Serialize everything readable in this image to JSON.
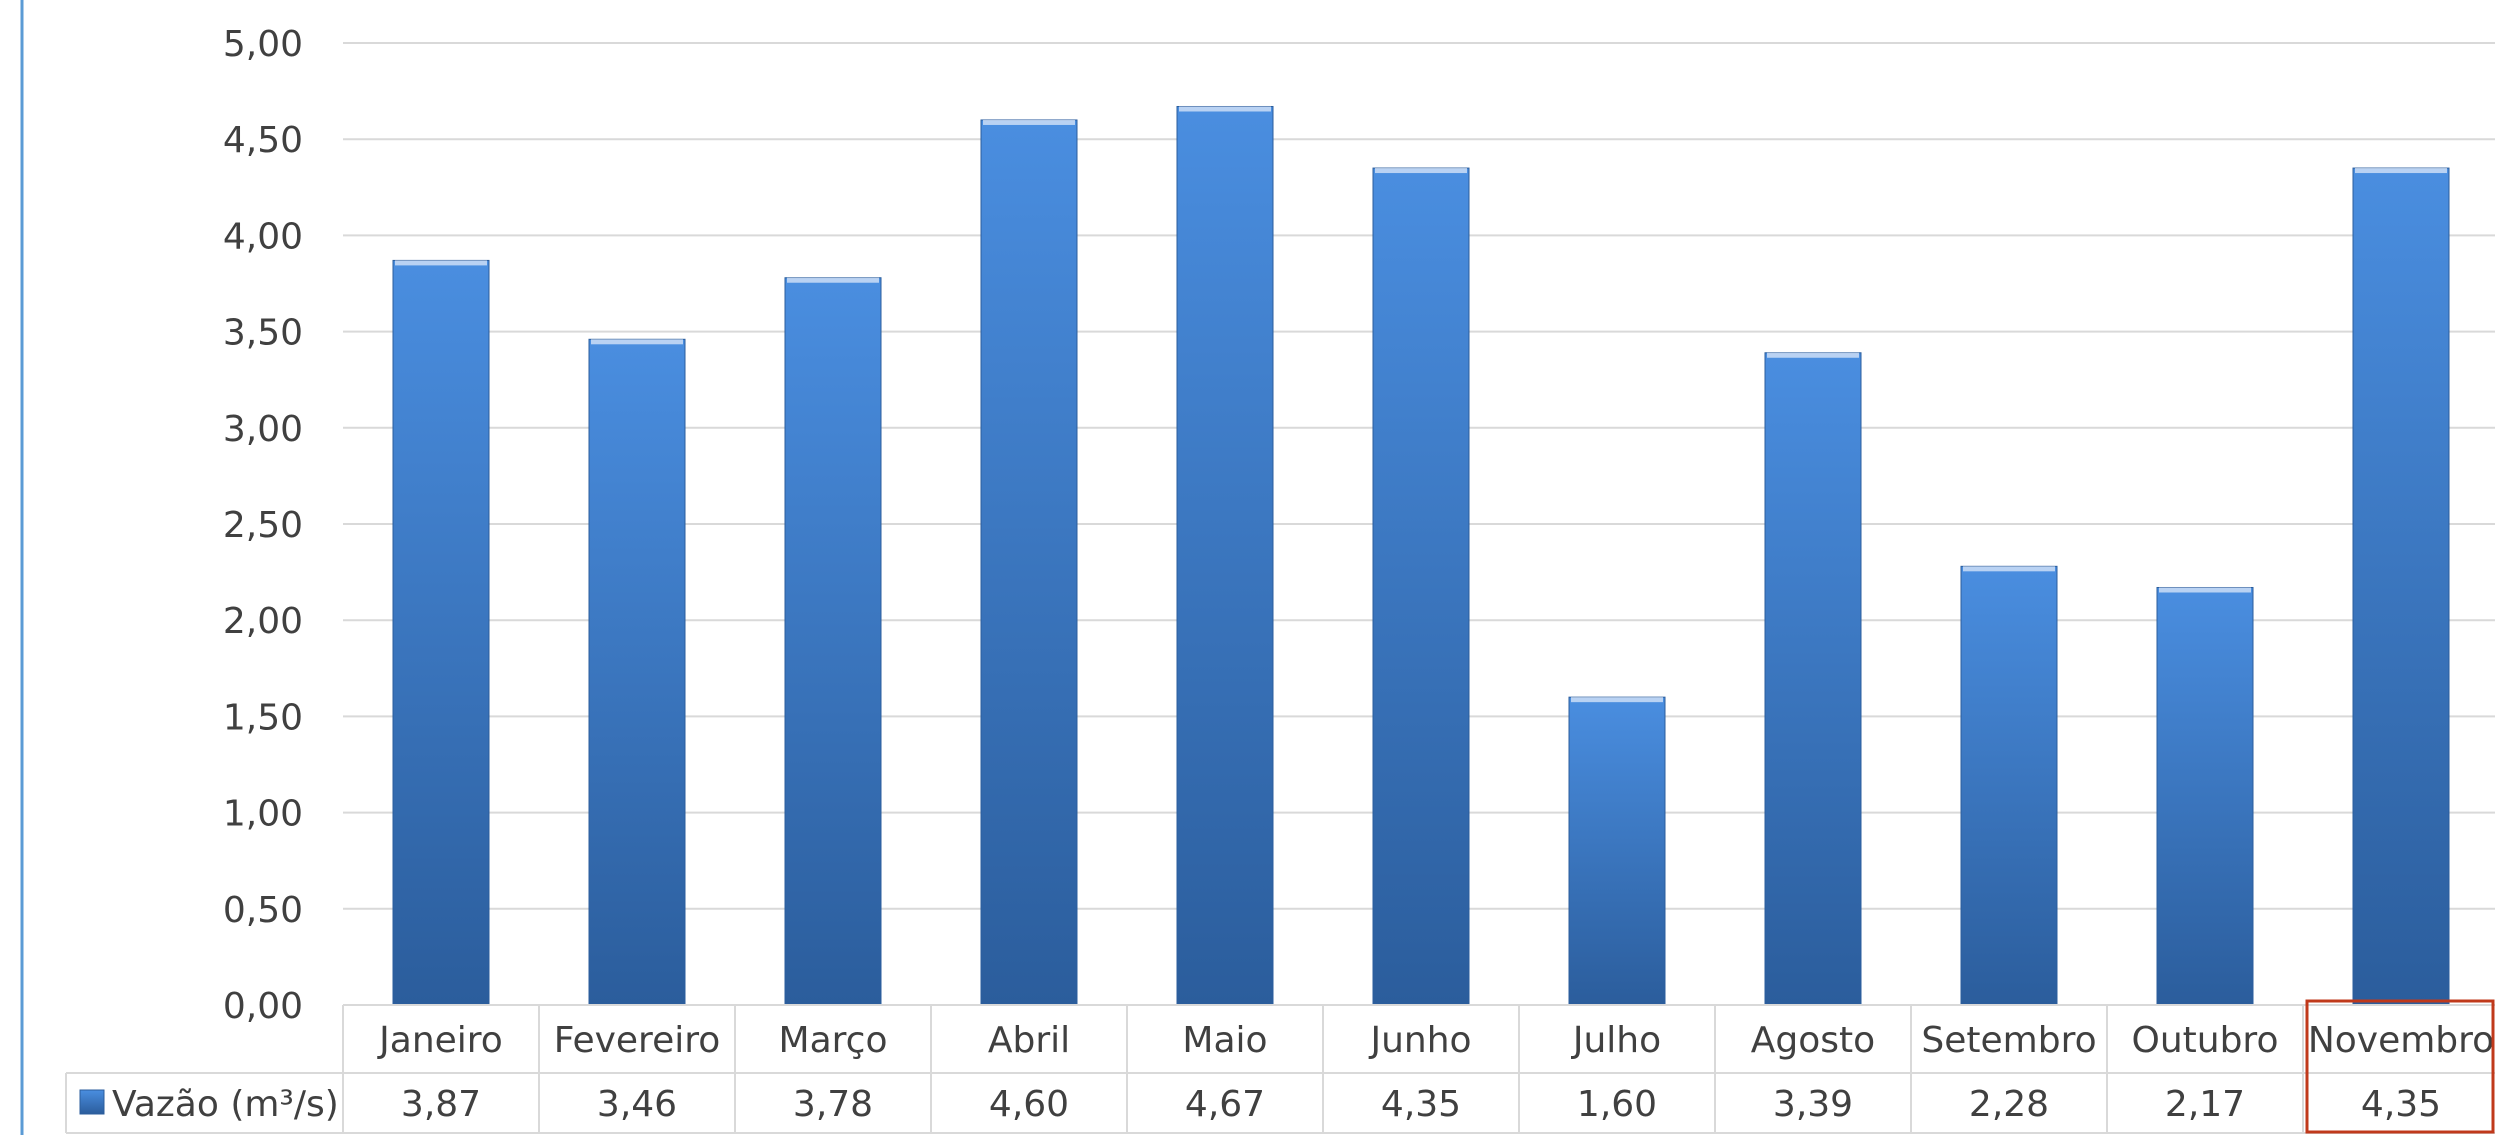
{
  "colors": {
    "bar_top": "#4a8ee0",
    "bar_bottom": "#2b5d9c",
    "bar_edge": "#e8f0fb",
    "grid": "#d9d9d9",
    "axis_text": "#404040",
    "frame": "#5b9bd5",
    "highlight": "#c0391b"
  },
  "chart_data": {
    "type": "bar",
    "categories": [
      "Janeiro",
      "Fevereiro",
      "Março",
      "Abril",
      "Maio",
      "Junho",
      "Julho",
      "Agosto",
      "Setembro",
      "Outubro",
      "Novembro"
    ],
    "series": [
      {
        "name": "Vazão (m³/s)",
        "values": [
          3.87,
          3.46,
          3.78,
          4.6,
          4.67,
          4.35,
          1.6,
          3.39,
          2.28,
          2.17,
          4.35
        ],
        "value_labels": [
          "3,87",
          "3,46",
          "3,78",
          "4,60",
          "4,67",
          "4,35",
          "1,60",
          "3,39",
          "2,28",
          "2,17",
          "4,35"
        ]
      }
    ],
    "y_ticks": [
      "0,00",
      "0,50",
      "1,00",
      "1,50",
      "2,00",
      "2,50",
      "3,00",
      "3,50",
      "4,00",
      "4,50",
      "5,00"
    ],
    "ylim": [
      0,
      5
    ],
    "grid": true,
    "data_table": true,
    "highlighted_category": "Novembro"
  }
}
